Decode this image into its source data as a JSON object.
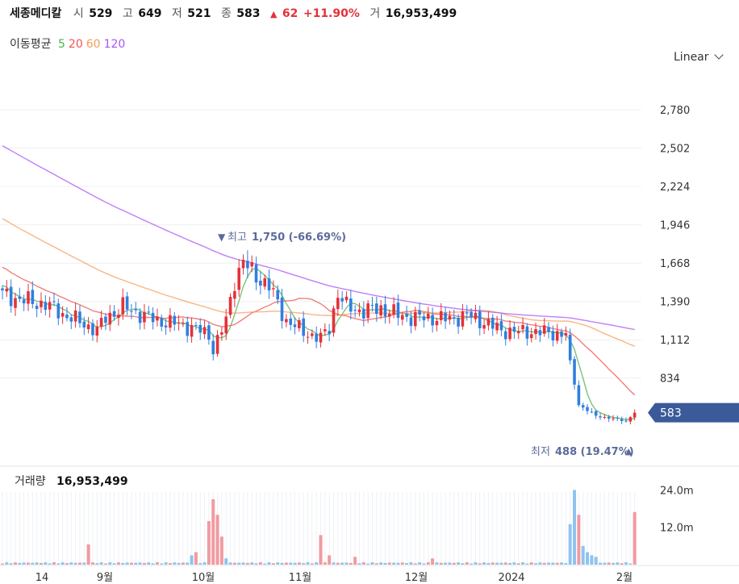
{
  "header": {
    "title": "세종메디칼",
    "open_label": "시",
    "open_value": "529",
    "high_label": "고",
    "high_value": "649",
    "low_label": "저",
    "low_value": "521",
    "close_label": "종",
    "close_value": "583",
    "change_arrow": "▲",
    "change_value": "62",
    "change_pct": "+11.90%",
    "volume_label": "거",
    "volume_value": "16,953,499"
  },
  "ma": {
    "label": "이동평균",
    "items": [
      {
        "text": "5",
        "color": "#4caf50"
      },
      {
        "text": "20",
        "color": "#ef5350"
      },
      {
        "text": "60",
        "color": "#f59e5b"
      },
      {
        "text": "120",
        "color": "#a855f7"
      }
    ]
  },
  "scale_selector": "Linear",
  "colors": {
    "up": "#e5313a",
    "down": "#2f7fe0",
    "price_tag": "#3b5a9a"
  },
  "chart_data": [
    {
      "type": "candlestick",
      "yaxis_ticks": [
        "2,780",
        "2,502",
        "2,224",
        "1,946",
        "1,668",
        "1,390",
        "1,112",
        "834"
      ],
      "ylim": [
        300,
        3050
      ],
      "xaxis_ticks": [
        "14",
        "9월",
        "10월",
        "11월",
        "12월",
        "2024",
        "2월"
      ],
      "current_price": {
        "label": "583",
        "value": 583
      },
      "annotations": {
        "high": {
          "prefix": "최고",
          "text": "1,750 (-66.69%)",
          "value": 1750
        },
        "low": {
          "prefix": "최저",
          "text": "488 (19.47%)",
          "value": 488
        }
      },
      "series_close_path": [
        [
          0,
          1440
        ],
        [
          6,
          1390
        ],
        [
          10,
          1370
        ],
        [
          14,
          1300
        ],
        [
          18,
          1240
        ],
        [
          22,
          1180
        ],
        [
          24,
          1270
        ],
        [
          28,
          1350
        ],
        [
          32,
          1300
        ],
        [
          36,
          1250
        ],
        [
          40,
          1230
        ],
        [
          44,
          1200
        ],
        [
          48,
          1150
        ],
        [
          49,
          1040
        ],
        [
          52,
          1250
        ],
        [
          54,
          1550
        ],
        [
          56,
          1680
        ],
        [
          58,
          1600
        ],
        [
          62,
          1500
        ],
        [
          66,
          1250
        ],
        [
          70,
          1170
        ],
        [
          74,
          1120
        ],
        [
          76,
          1200
        ],
        [
          78,
          1450
        ],
        [
          80,
          1350
        ],
        [
          84,
          1320
        ],
        [
          88,
          1340
        ],
        [
          92,
          1290
        ],
        [
          96,
          1270
        ],
        [
          100,
          1270
        ],
        [
          104,
          1260
        ],
        [
          108,
          1290
        ],
        [
          112,
          1240
        ],
        [
          116,
          1180
        ],
        [
          120,
          1170
        ],
        [
          124,
          1170
        ],
        [
          128,
          1160
        ],
        [
          131,
          1150
        ],
        [
          132,
          950
        ],
        [
          134,
          640
        ],
        [
          138,
          560
        ],
        [
          142,
          540
        ],
        [
          145,
          520
        ],
        [
          147,
          583
        ]
      ],
      "ma_lines": [
        {
          "name": "5",
          "color": "#4caf50"
        },
        {
          "name": "20",
          "color": "#ef5350"
        },
        {
          "name": "60",
          "color": "#f59e5b"
        },
        {
          "name": "120",
          "color": "#a855f7"
        }
      ]
    },
    {
      "type": "bar",
      "title": "거래량",
      "title_value": "16,953,499",
      "yaxis_ticks": [
        "24.0m",
        "12.0m"
      ],
      "ylim": [
        0,
        28
      ],
      "volume_series": [
        {
          "day": 20,
          "value": 6.5,
          "dir": "up"
        },
        {
          "day": 44,
          "value": 3,
          "dir": "down"
        },
        {
          "day": 45,
          "value": 4,
          "dir": "up"
        },
        {
          "day": 48,
          "value": 14,
          "dir": "up"
        },
        {
          "day": 49,
          "value": 21,
          "dir": "up"
        },
        {
          "day": 50,
          "value": 16,
          "dir": "up"
        },
        {
          "day": 51,
          "value": 9,
          "dir": "up"
        },
        {
          "day": 52,
          "value": 2,
          "dir": "down"
        },
        {
          "day": 74,
          "value": 9.5,
          "dir": "up"
        },
        {
          "day": 76,
          "value": 3,
          "dir": "up"
        },
        {
          "day": 82,
          "value": 2.5,
          "dir": "up"
        },
        {
          "day": 100,
          "value": 2,
          "dir": "up"
        },
        {
          "day": 132,
          "value": 13,
          "dir": "down"
        },
        {
          "day": 133,
          "value": 24,
          "dir": "down"
        },
        {
          "day": 134,
          "value": 16,
          "dir": "up"
        },
        {
          "day": 135,
          "value": 6,
          "dir": "down"
        },
        {
          "day": 136,
          "value": 4,
          "dir": "down"
        },
        {
          "day": 137,
          "value": 3,
          "dir": "down"
        },
        {
          "day": 138,
          "value": 2.5,
          "dir": "down"
        },
        {
          "day": 147,
          "value": 16.9,
          "dir": "up"
        }
      ]
    }
  ]
}
